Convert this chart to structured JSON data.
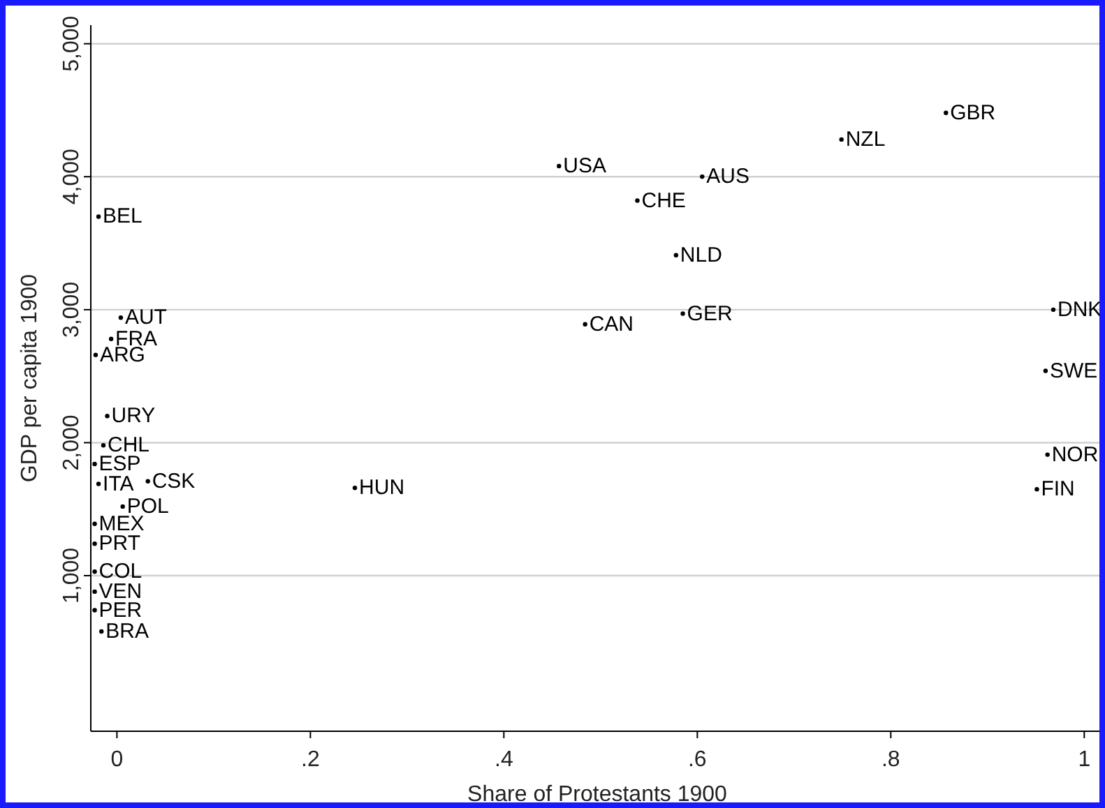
{
  "chart_data": {
    "type": "scatter",
    "xlabel": "Share of Protestants 1900",
    "ylabel": "GDP per capita 1900",
    "xlim": [
      -0.027,
      1.02
    ],
    "ylim": [
      -170,
      5140
    ],
    "xticks": [
      0,
      {
        "value": 0.2,
        "label": ".2"
      },
      {
        "value": 0.4,
        "label": ".4"
      },
      {
        "value": 0.6,
        "label": ".6"
      },
      {
        "value": 0.8,
        "label": ".8"
      },
      1
    ],
    "yticks": [
      {
        "value": 1000,
        "label": "1,000"
      },
      {
        "value": 2000,
        "label": "2,000"
      },
      {
        "value": 3000,
        "label": "3,000"
      },
      {
        "value": 4000,
        "label": "4,000"
      },
      {
        "value": 5000,
        "label": "5,000"
      }
    ],
    "grid": "y",
    "marker": "circle",
    "series": [
      {
        "name": "BEL",
        "color": "#000000",
        "x": [
          -0.019
        ],
        "values": [
          3700
        ]
      },
      {
        "name": "AUT",
        "color": "#000000",
        "x": [
          0.004
        ],
        "values": [
          2940
        ]
      },
      {
        "name": "FRA",
        "color": "#000000",
        "x": [
          -0.006
        ],
        "values": [
          2780
        ]
      },
      {
        "name": "ARG",
        "color": "#000000",
        "x": [
          -0.022
        ],
        "values": [
          2660
        ]
      },
      {
        "name": "URY",
        "color": "#000000",
        "x": [
          -0.01
        ],
        "values": [
          2200
        ]
      },
      {
        "name": "CHL",
        "color": "#000000",
        "x": [
          -0.014
        ],
        "values": [
          1980
        ]
      },
      {
        "name": "ESP",
        "color": "#000000",
        "x": [
          -0.023
        ],
        "values": [
          1840
        ]
      },
      {
        "name": "ITA",
        "color": "#000000",
        "x": [
          -0.019
        ],
        "values": [
          1690
        ]
      },
      {
        "name": "CSK",
        "color": "#000000",
        "x": [
          0.032
        ],
        "values": [
          1710
        ]
      },
      {
        "name": "POL",
        "color": "#000000",
        "x": [
          0.006
        ],
        "values": [
          1520
        ]
      },
      {
        "name": "MEX",
        "color": "#000000",
        "x": [
          -0.023
        ],
        "values": [
          1390
        ]
      },
      {
        "name": "PRT",
        "color": "#000000",
        "x": [
          -0.023
        ],
        "values": [
          1240
        ]
      },
      {
        "name": "COL",
        "color": "#000000",
        "x": [
          -0.023
        ],
        "values": [
          1030
        ]
      },
      {
        "name": "VEN",
        "color": "#000000",
        "x": [
          -0.023
        ],
        "values": [
          880
        ]
      },
      {
        "name": "PER",
        "color": "#000000",
        "x": [
          -0.023
        ],
        "values": [
          740
        ]
      },
      {
        "name": "BRA",
        "color": "#000000",
        "x": [
          -0.016
        ],
        "values": [
          580
        ]
      },
      {
        "name": "HUN",
        "color": "#000000",
        "x": [
          0.246
        ],
        "values": [
          1660
        ]
      },
      {
        "name": "USA",
        "color": "#000000",
        "x": [
          0.457
        ],
        "values": [
          4080
        ]
      },
      {
        "name": "CHE",
        "color": "#000000",
        "x": [
          0.538
        ],
        "values": [
          3820
        ]
      },
      {
        "name": "AUS",
        "color": "#000000",
        "x": [
          0.605
        ],
        "values": [
          4000
        ]
      },
      {
        "name": "NLD",
        "color": "#000000",
        "x": [
          0.578
        ],
        "values": [
          3410
        ]
      },
      {
        "name": "GER",
        "color": "#000000",
        "x": [
          0.585
        ],
        "values": [
          2970
        ]
      },
      {
        "name": "CAN",
        "color": "#000000",
        "x": [
          0.484
        ],
        "values": [
          2890
        ]
      },
      {
        "name": "NZL",
        "color": "#000000",
        "x": [
          0.749
        ],
        "values": [
          4280
        ]
      },
      {
        "name": "GBR",
        "color": "#000000",
        "x": [
          0.857
        ],
        "values": [
          4480
        ]
      },
      {
        "name": "DNK",
        "color": "#000000",
        "x": [
          0.968
        ],
        "values": [
          3000
        ]
      },
      {
        "name": "SWE",
        "color": "#000000",
        "x": [
          0.96
        ],
        "values": [
          2540
        ]
      },
      {
        "name": "NOR",
        "color": "#000000",
        "x": [
          0.962
        ],
        "values": [
          1910
        ]
      },
      {
        "name": "FIN",
        "color": "#000000",
        "x": [
          0.951
        ],
        "values": [
          1650
        ]
      }
    ]
  }
}
